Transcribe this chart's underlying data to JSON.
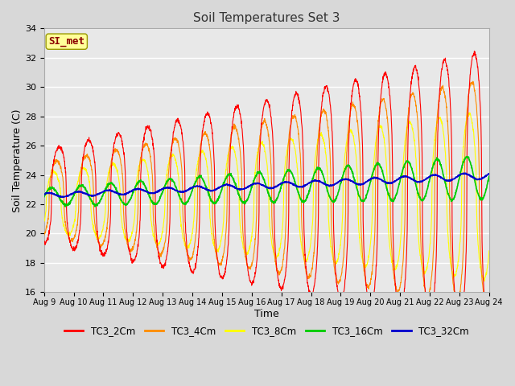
{
  "title": "Soil Temperatures Set 3",
  "xlabel": "Time",
  "ylabel": "Soil Temperature (C)",
  "ylim": [
    16,
    34
  ],
  "annotation_text": "SI_met",
  "annotation_color": "#8B0000",
  "annotation_bg": "#FFFF99",
  "bg_color": "#E8E8E8",
  "legend_entries": [
    "TC3_2Cm",
    "TC3_4Cm",
    "TC3_8Cm",
    "TC3_16Cm",
    "TC3_32Cm"
  ],
  "line_colors": [
    "#FF0000",
    "#FF8C00",
    "#FFFF00",
    "#00CC00",
    "#0000CD"
  ],
  "num_days": 15,
  "start_day": 9
}
